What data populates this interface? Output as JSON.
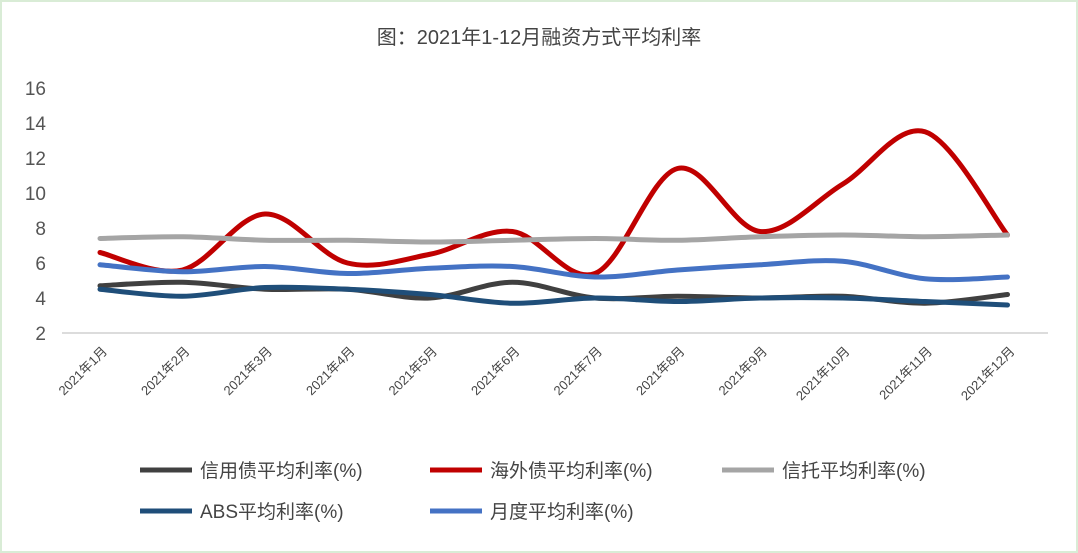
{
  "chart_data": {
    "type": "line",
    "title": "图：2021年1-12月融资方式平均利率",
    "xlabel": "",
    "ylabel": "",
    "ylim": [
      2,
      16
    ],
    "yticks": [
      2,
      4,
      6,
      8,
      10,
      12,
      14,
      16
    ],
    "grid": false,
    "legend_position": "bottom",
    "categories": [
      "2021年1月",
      "2021年2月",
      "2021年3月",
      "2021年4月",
      "2021年5月",
      "2021年6月",
      "2021年7月",
      "2021年8月",
      "2021年9月",
      "2021年10月",
      "2021年11月",
      "2021年12月"
    ],
    "series": [
      {
        "name": "信用债平均利率(%)",
        "color": "#404040",
        "values": [
          4.7,
          4.9,
          4.5,
          4.5,
          4.0,
          4.9,
          4.0,
          4.1,
          4.0,
          4.1,
          3.7,
          4.2
        ]
      },
      {
        "name": "海外债平均利率(%)",
        "color": "#c00000",
        "values": [
          6.6,
          5.6,
          8.8,
          6.0,
          6.5,
          7.8,
          5.4,
          11.4,
          7.8,
          10.5,
          13.5,
          7.6
        ]
      },
      {
        "name": "信托平均利率(%)",
        "color": "#a5a5a5",
        "values": [
          7.4,
          7.5,
          7.3,
          7.3,
          7.2,
          7.3,
          7.4,
          7.3,
          7.5,
          7.6,
          7.5,
          7.6
        ]
      },
      {
        "name": "ABS平均利率(%)",
        "color": "#1f4e79",
        "values": [
          4.5,
          4.1,
          4.6,
          4.5,
          4.2,
          3.7,
          4.0,
          3.8,
          4.0,
          4.0,
          3.8,
          3.6
        ]
      },
      {
        "name": "月度平均利率(%)",
        "color": "#4472c4",
        "values": [
          5.9,
          5.5,
          5.8,
          5.4,
          5.7,
          5.8,
          5.2,
          5.6,
          5.9,
          6.1,
          5.1,
          5.2
        ]
      }
    ]
  }
}
